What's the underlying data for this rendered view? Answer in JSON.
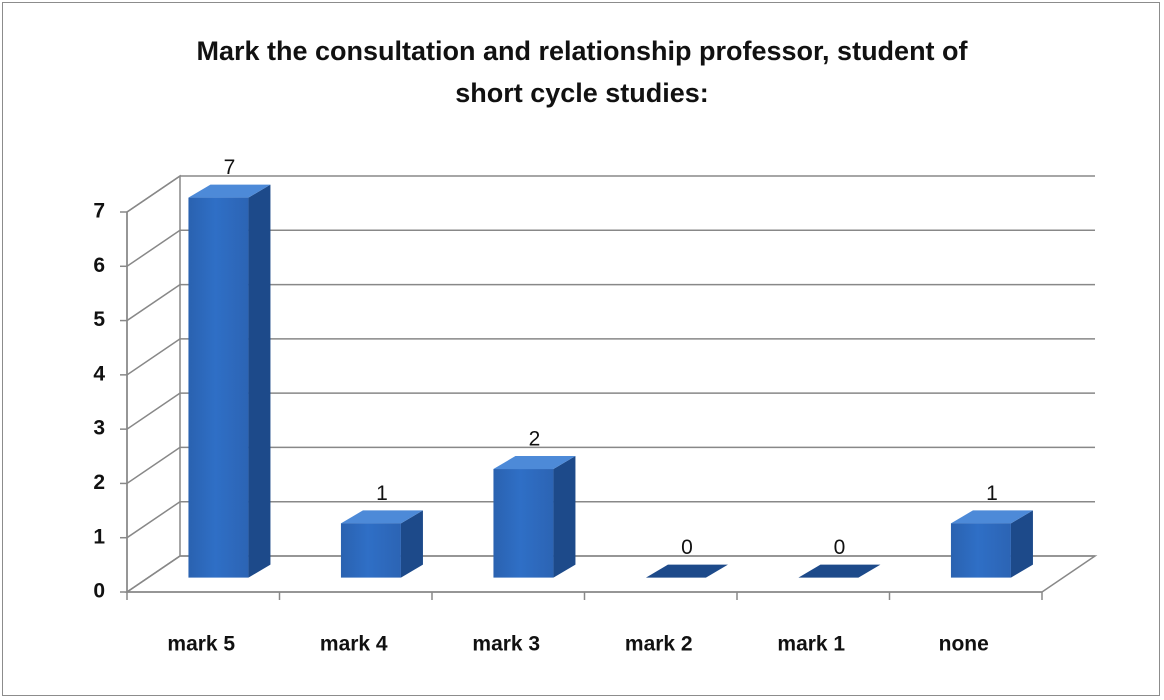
{
  "chart_data": {
    "type": "bar",
    "title": "Mark the consultation and relationship professor, student of short cycle studies:",
    "categories": [
      "mark 5",
      "mark 4",
      "mark 3",
      "mark 2",
      "mark 1",
      "none"
    ],
    "values": [
      7,
      1,
      2,
      0,
      0,
      1
    ],
    "color": "#2f6fc6",
    "ylim": [
      0,
      7
    ],
    "yticks": [
      0,
      1,
      2,
      3,
      4,
      5,
      6,
      7
    ],
    "grid": true
  }
}
